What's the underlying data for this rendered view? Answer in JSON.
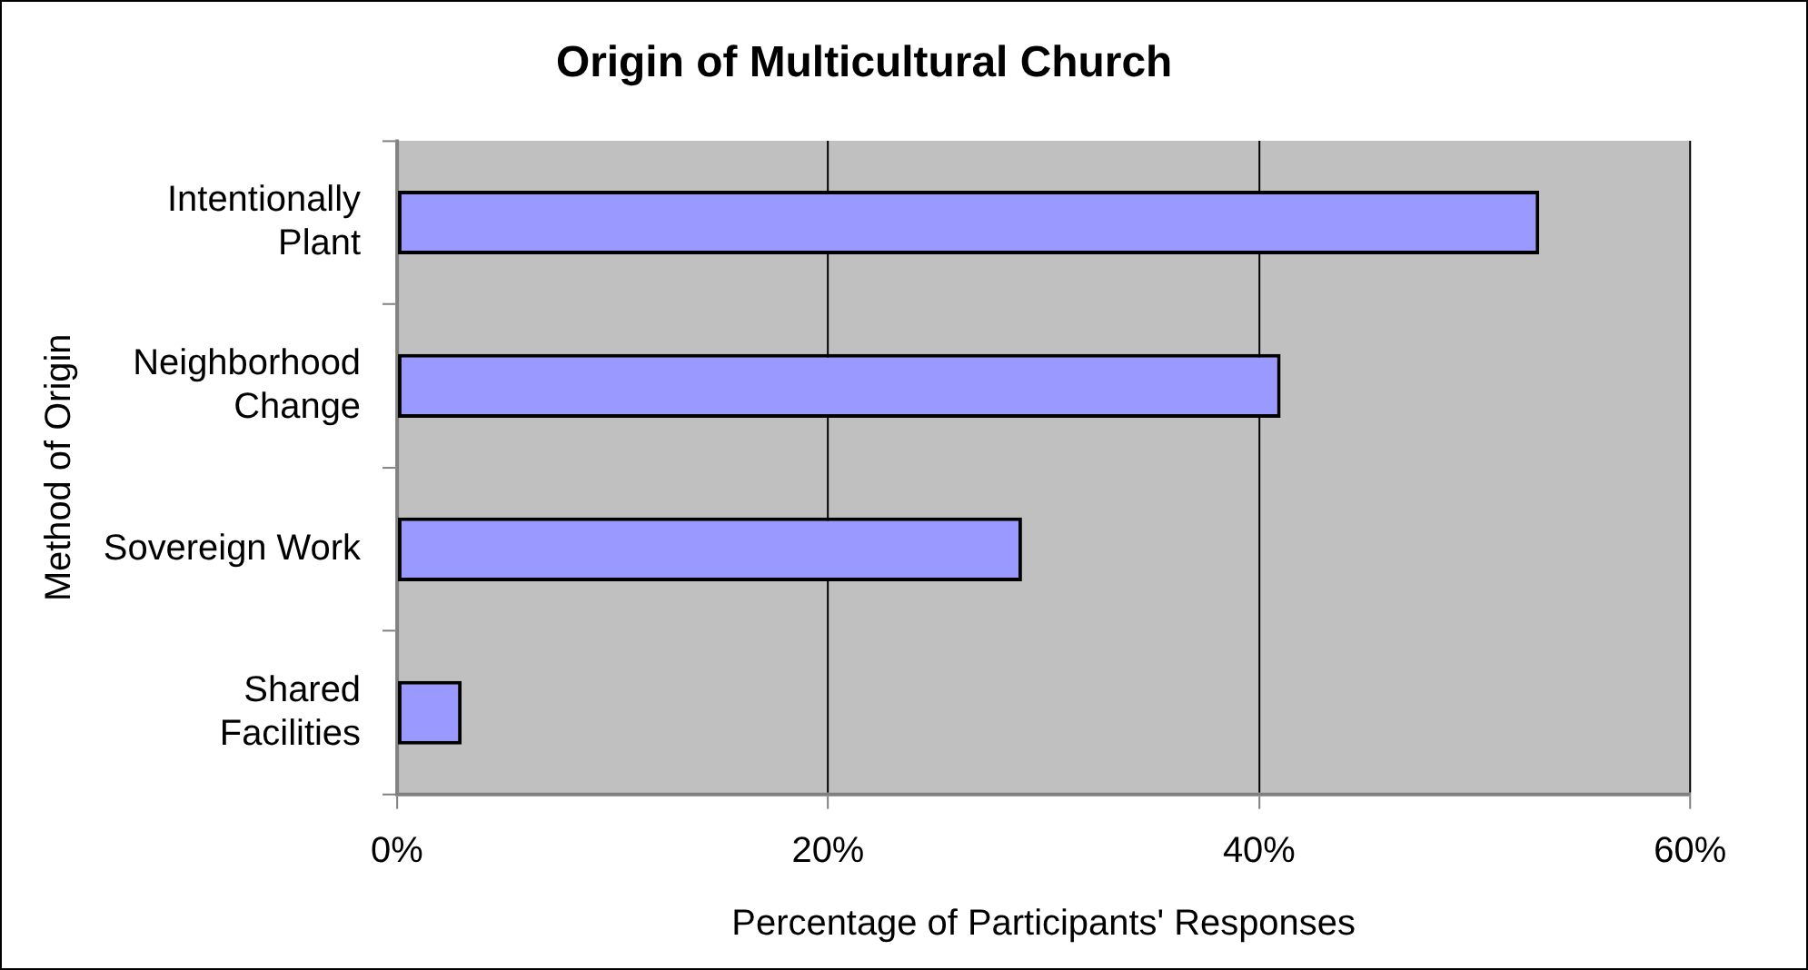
{
  "chart_data": {
    "type": "bar",
    "orientation": "horizontal",
    "title": "Origin of Multicultural Church",
    "xlabel": "Percentage of Participants' Responses",
    "ylabel": "Method of Origin",
    "categories": [
      "Intentionally Plant",
      "Neighborhood Change",
      "Sovereign Work",
      "Shared Facilities"
    ],
    "values": [
      53,
      41,
      29,
      3
    ],
    "color": "#9999ff",
    "xlim": [
      0,
      60
    ],
    "xticks": [
      {
        "value": 0,
        "label": "0%"
      },
      {
        "value": 20,
        "label": "20%"
      },
      {
        "value": 40,
        "label": "40%"
      },
      {
        "value": 60,
        "label": "60%"
      }
    ],
    "grid": "x",
    "legend": false
  }
}
